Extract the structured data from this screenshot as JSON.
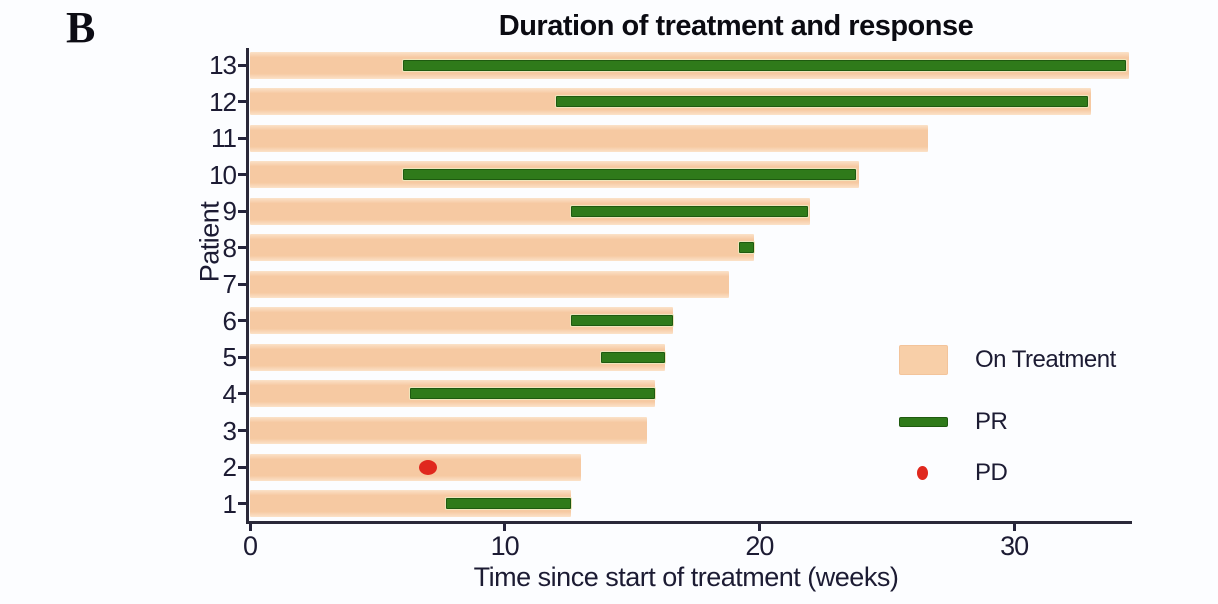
{
  "panel_label": "B",
  "legend": {
    "items": [
      {
        "label": "On Treatment",
        "marker": "orange-bar-swatch",
        "color": "#f6c9a2"
      },
      {
        "label": "PR",
        "marker": "green-segment-swatch",
        "color": "#2f7a1a"
      },
      {
        "label": "PD",
        "marker": "red-dot-swatch",
        "color": "#e0281e"
      }
    ]
  },
  "colors": {
    "on_treatment": "#f6c9a2",
    "pr": "#2f7a1a",
    "pd": "#e0281e",
    "axis": "#2a2939",
    "text": "#1c1b33",
    "background": "#fcfdff"
  },
  "chart_data": {
    "type": "bar",
    "subtype": "swimmer-plot",
    "orientation": "horizontal",
    "title": "Duration of treatment and response",
    "xlabel": "Time since start of treatment (weeks)",
    "ylabel": "Patient",
    "x_ticks": [
      0,
      10,
      20,
      30
    ],
    "xlim": [
      0,
      35
    ],
    "grid": false,
    "legend_position": "right-middle",
    "series_legend": [
      "On Treatment",
      "PR",
      "PD"
    ],
    "patients": [
      {
        "id": 1,
        "treatment_weeks": 12.6,
        "pr": [
          7.7,
          12.6
        ],
        "pd": null
      },
      {
        "id": 2,
        "treatment_weeks": 13.0,
        "pr": null,
        "pd": 7.0
      },
      {
        "id": 3,
        "treatment_weeks": 15.6,
        "pr": null,
        "pd": null
      },
      {
        "id": 4,
        "treatment_weeks": 15.9,
        "pr": [
          6.3,
          15.9
        ],
        "pd": null
      },
      {
        "id": 5,
        "treatment_weeks": 16.3,
        "pr": [
          13.8,
          16.3
        ],
        "pd": null
      },
      {
        "id": 6,
        "treatment_weeks": 16.6,
        "pr": [
          12.6,
          16.6
        ],
        "pd": null
      },
      {
        "id": 7,
        "treatment_weeks": 18.8,
        "pr": null,
        "pd": null
      },
      {
        "id": 8,
        "treatment_weeks": 19.8,
        "pr": [
          19.2,
          19.8
        ],
        "pd": null
      },
      {
        "id": 9,
        "treatment_weeks": 22.0,
        "pr": [
          12.6,
          21.9
        ],
        "pd": null
      },
      {
        "id": 10,
        "treatment_weeks": 23.9,
        "pr": [
          6.0,
          23.8
        ],
        "pd": null
      },
      {
        "id": 11,
        "treatment_weeks": 26.6,
        "pr": null,
        "pd": null
      },
      {
        "id": 12,
        "treatment_weeks": 33.0,
        "pr": [
          12.0,
          32.9
        ],
        "pd": null
      },
      {
        "id": 13,
        "treatment_weeks": 34.5,
        "pr": [
          6.0,
          34.4
        ],
        "pd": null
      }
    ]
  }
}
